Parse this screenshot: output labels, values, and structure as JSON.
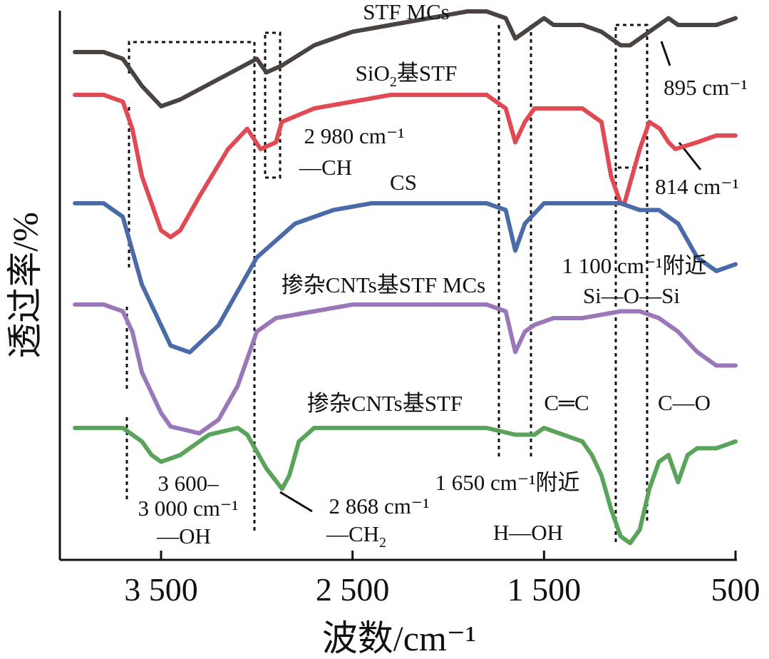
{
  "chart_data": {
    "type": "line",
    "xlabel": "波数/cm⁻¹",
    "ylabel": "透过率/%",
    "xlim": [
      3950,
      500
    ],
    "x_reversed": true,
    "x_ticks": [
      3500,
      2500,
      1500,
      500
    ],
    "x_tick_labels": [
      "3 500",
      "2 500",
      "1 500",
      "500"
    ],
    "y_ticks_shown": false,
    "series": [
      {
        "name": "STF MCs",
        "color": "#4a4341",
        "points": [
          [
            3950,
            0.7
          ],
          [
            3800,
            0.7
          ],
          [
            3700,
            0.69
          ],
          [
            3600,
            0.65
          ],
          [
            3500,
            0.62
          ],
          [
            3400,
            0.63
          ],
          [
            3200,
            0.66
          ],
          [
            3000,
            0.69
          ],
          [
            2950,
            0.67
          ],
          [
            2870,
            0.68
          ],
          [
            2700,
            0.71
          ],
          [
            2500,
            0.73
          ],
          [
            2300,
            0.74
          ],
          [
            2100,
            0.75
          ],
          [
            1900,
            0.76
          ],
          [
            1800,
            0.76
          ],
          [
            1700,
            0.75
          ],
          [
            1650,
            0.72
          ],
          [
            1600,
            0.73
          ],
          [
            1500,
            0.75
          ],
          [
            1450,
            0.74
          ],
          [
            1300,
            0.74
          ],
          [
            1200,
            0.73
          ],
          [
            1100,
            0.71
          ],
          [
            1050,
            0.71
          ],
          [
            900,
            0.74
          ],
          [
            850,
            0.75
          ],
          [
            800,
            0.74
          ],
          [
            700,
            0.74
          ],
          [
            600,
            0.74
          ],
          [
            500,
            0.75
          ]
        ]
      },
      {
        "name": "SiO₂基STF",
        "color": "#e04a52",
        "points": [
          [
            3950,
            0.7
          ],
          [
            3800,
            0.7
          ],
          [
            3700,
            0.69
          ],
          [
            3650,
            0.65
          ],
          [
            3600,
            0.58
          ],
          [
            3500,
            0.5
          ],
          [
            3450,
            0.49
          ],
          [
            3400,
            0.5
          ],
          [
            3300,
            0.55
          ],
          [
            3150,
            0.62
          ],
          [
            3050,
            0.65
          ],
          [
            2980,
            0.62
          ],
          [
            2900,
            0.63
          ],
          [
            2870,
            0.66
          ],
          [
            2700,
            0.68
          ],
          [
            2500,
            0.69
          ],
          [
            2300,
            0.7
          ],
          [
            2000,
            0.7
          ],
          [
            1800,
            0.7
          ],
          [
            1700,
            0.68
          ],
          [
            1650,
            0.63
          ],
          [
            1600,
            0.66
          ],
          [
            1550,
            0.68
          ],
          [
            1400,
            0.68
          ],
          [
            1300,
            0.68
          ],
          [
            1200,
            0.66
          ],
          [
            1150,
            0.58
          ],
          [
            1100,
            0.54
          ],
          [
            1080,
            0.54
          ],
          [
            1050,
            0.57
          ],
          [
            1000,
            0.62
          ],
          [
            950,
            0.66
          ],
          [
            895,
            0.65
          ],
          [
            850,
            0.63
          ],
          [
            814,
            0.62
          ],
          [
            700,
            0.63
          ],
          [
            600,
            0.64
          ],
          [
            500,
            0.64
          ]
        ]
      },
      {
        "name": "CS",
        "color": "#4a6aa8",
        "points": [
          [
            3950,
            0.7
          ],
          [
            3800,
            0.7
          ],
          [
            3700,
            0.68
          ],
          [
            3600,
            0.58
          ],
          [
            3500,
            0.52
          ],
          [
            3450,
            0.49
          ],
          [
            3350,
            0.48
          ],
          [
            3200,
            0.52
          ],
          [
            3000,
            0.62
          ],
          [
            2800,
            0.67
          ],
          [
            2600,
            0.69
          ],
          [
            2400,
            0.7
          ],
          [
            2200,
            0.7
          ],
          [
            2000,
            0.7
          ],
          [
            1800,
            0.7
          ],
          [
            1700,
            0.69
          ],
          [
            1650,
            0.63
          ],
          [
            1600,
            0.67
          ],
          [
            1500,
            0.7
          ],
          [
            1400,
            0.7
          ],
          [
            1300,
            0.7
          ],
          [
            1100,
            0.7
          ],
          [
            1000,
            0.69
          ],
          [
            900,
            0.69
          ],
          [
            800,
            0.67
          ],
          [
            700,
            0.62
          ],
          [
            600,
            0.6
          ],
          [
            500,
            0.61
          ]
        ]
      },
      {
        "name": "掺杂CNTs基STF MCs",
        "color": "#9a77b8",
        "points": [
          [
            3950,
            0.7
          ],
          [
            3800,
            0.7
          ],
          [
            3700,
            0.69
          ],
          [
            3650,
            0.66
          ],
          [
            3600,
            0.6
          ],
          [
            3500,
            0.54
          ],
          [
            3450,
            0.52
          ],
          [
            3300,
            0.51
          ],
          [
            3200,
            0.53
          ],
          [
            3100,
            0.58
          ],
          [
            3000,
            0.66
          ],
          [
            2900,
            0.68
          ],
          [
            2700,
            0.69
          ],
          [
            2500,
            0.7
          ],
          [
            2300,
            0.7
          ],
          [
            2100,
            0.7
          ],
          [
            1900,
            0.7
          ],
          [
            1800,
            0.7
          ],
          [
            1700,
            0.69
          ],
          [
            1650,
            0.63
          ],
          [
            1600,
            0.66
          ],
          [
            1550,
            0.67
          ],
          [
            1450,
            0.68
          ],
          [
            1300,
            0.68
          ],
          [
            1100,
            0.69
          ],
          [
            1000,
            0.69
          ],
          [
            900,
            0.68
          ],
          [
            800,
            0.66
          ],
          [
            700,
            0.63
          ],
          [
            600,
            0.61
          ],
          [
            500,
            0.61
          ]
        ]
      },
      {
        "name": "掺杂CNTs基STF",
        "color": "#5aa35a",
        "points": [
          [
            3950,
            0.7
          ],
          [
            3800,
            0.7
          ],
          [
            3700,
            0.7
          ],
          [
            3600,
            0.68
          ],
          [
            3550,
            0.66
          ],
          [
            3500,
            0.65
          ],
          [
            3400,
            0.66
          ],
          [
            3250,
            0.69
          ],
          [
            3100,
            0.7
          ],
          [
            3050,
            0.69
          ],
          [
            2950,
            0.64
          ],
          [
            2868,
            0.61
          ],
          [
            2830,
            0.63
          ],
          [
            2780,
            0.68
          ],
          [
            2700,
            0.7
          ],
          [
            2500,
            0.7
          ],
          [
            2200,
            0.7
          ],
          [
            2000,
            0.7
          ],
          [
            1800,
            0.7
          ],
          [
            1650,
            0.69
          ],
          [
            1550,
            0.69
          ],
          [
            1500,
            0.7
          ],
          [
            1400,
            0.69
          ],
          [
            1300,
            0.68
          ],
          [
            1250,
            0.66
          ],
          [
            1200,
            0.63
          ],
          [
            1150,
            0.58
          ],
          [
            1100,
            0.54
          ],
          [
            1050,
            0.53
          ],
          [
            1000,
            0.55
          ],
          [
            950,
            0.61
          ],
          [
            900,
            0.65
          ],
          [
            850,
            0.66
          ],
          [
            800,
            0.62
          ],
          [
            750,
            0.66
          ],
          [
            700,
            0.67
          ],
          [
            600,
            0.67
          ],
          [
            500,
            0.68
          ]
        ]
      }
    ],
    "series_labels": [
      "STF MCs",
      "SiO₂基STF",
      "CS",
      "掺杂CNTs基STF MCs",
      "掺杂CNTs基STF"
    ],
    "annotations": {
      "peak_895": "895 cm⁻¹",
      "peak_2980": "2 980 cm⁻¹",
      "ch_group": "—CH",
      "peak_814": "814 cm⁻¹",
      "peak_1100": "1 100 cm⁻¹附近",
      "sioSi_group": "Si—O—Si",
      "cc_group": "C═C",
      "co_group": "C—O",
      "oh_range_line1": "3 600–",
      "oh_range_line2": "3 000 cm⁻¹",
      "oh_group": "—OH",
      "peak_2868": "2 868 cm⁻¹",
      "ch2_group": "—CH₂",
      "peak_1650": "1 650 cm⁻¹附近",
      "hoh_group": "H—OH"
    }
  }
}
